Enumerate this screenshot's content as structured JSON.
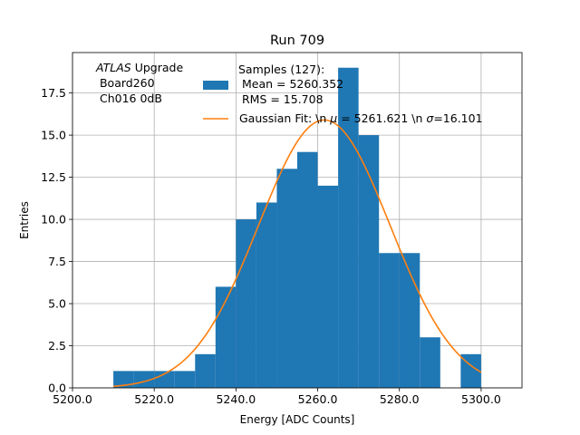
{
  "chart_data": {
    "type": "bar",
    "title": "Run 709",
    "xlabel": "Energy [ADC Counts]",
    "ylabel": "Entries",
    "xlim": [
      5200.0,
      5310.0
    ],
    "ylim": [
      0.0,
      19.9
    ],
    "grid": true,
    "x_ticks": [
      5200.0,
      5220.0,
      5240.0,
      5260.0,
      5280.0,
      5300.0
    ],
    "x_tick_labels": [
      "5200.0",
      "5220.0",
      "5240.0",
      "5260.0",
      "5280.0",
      "5300.0"
    ],
    "y_ticks": [
      0.0,
      2.5,
      5.0,
      7.5,
      10.0,
      12.5,
      15.0,
      17.5
    ],
    "y_tick_labels": [
      "0.0",
      "2.5",
      "5.0",
      "7.5",
      "10.0",
      "12.5",
      "15.0",
      "17.5"
    ],
    "histogram": {
      "name": "Samples (127):\n Mean = 5260.352\n RMS = 15.708",
      "color": "#1f77b4",
      "bins": [
        {
          "x0": 5210,
          "x1": 5215,
          "count": 1
        },
        {
          "x0": 5215,
          "x1": 5220,
          "count": 1
        },
        {
          "x0": 5220,
          "x1": 5225,
          "count": 1
        },
        {
          "x0": 5225,
          "x1": 5230,
          "count": 1
        },
        {
          "x0": 5230,
          "x1": 5235,
          "count": 2
        },
        {
          "x0": 5235,
          "x1": 5240,
          "count": 6
        },
        {
          "x0": 5240,
          "x1": 5245,
          "count": 10
        },
        {
          "x0": 5245,
          "x1": 5250,
          "count": 11
        },
        {
          "x0": 5250,
          "x1": 5255,
          "count": 13
        },
        {
          "x0": 5255,
          "x1": 5260,
          "count": 14
        },
        {
          "x0": 5260,
          "x1": 5265,
          "count": 12
        },
        {
          "x0": 5265,
          "x1": 5270,
          "count": 19
        },
        {
          "x0": 5270,
          "x1": 5275,
          "count": 15
        },
        {
          "x0": 5275,
          "x1": 5280,
          "count": 8
        },
        {
          "x0": 5280,
          "x1": 5285,
          "count": 8
        },
        {
          "x0": 5285,
          "x1": 5290,
          "count": 3
        },
        {
          "x0": 5295,
          "x1": 5300,
          "count": 2
        }
      ]
    },
    "fit": {
      "name": "Gaussian Fit: \\n $\\mu$ = 5261.621 \\n $\\sigma$=16.101",
      "legend_prefix": "Gaussian Fit: \\n ",
      "legend_mu": " = 5261.621 \\n ",
      "legend_sigma": "=16.101",
      "color": "#ff7f0e",
      "mu": 5261.621,
      "sigma": 16.101,
      "amplitude": 15.9,
      "x_range": [
        5210,
        5300
      ]
    },
    "annotation": {
      "italic": "ATLAS",
      "line1_rest": " Upgrade",
      "line2": " Board260",
      "line3": " Ch016 0dB"
    },
    "legend": {
      "placement": "top-center",
      "hist_line1": "Samples (127):",
      "hist_line2": " Mean = 5260.352",
      "hist_line3": " RMS = 15.708"
    }
  }
}
